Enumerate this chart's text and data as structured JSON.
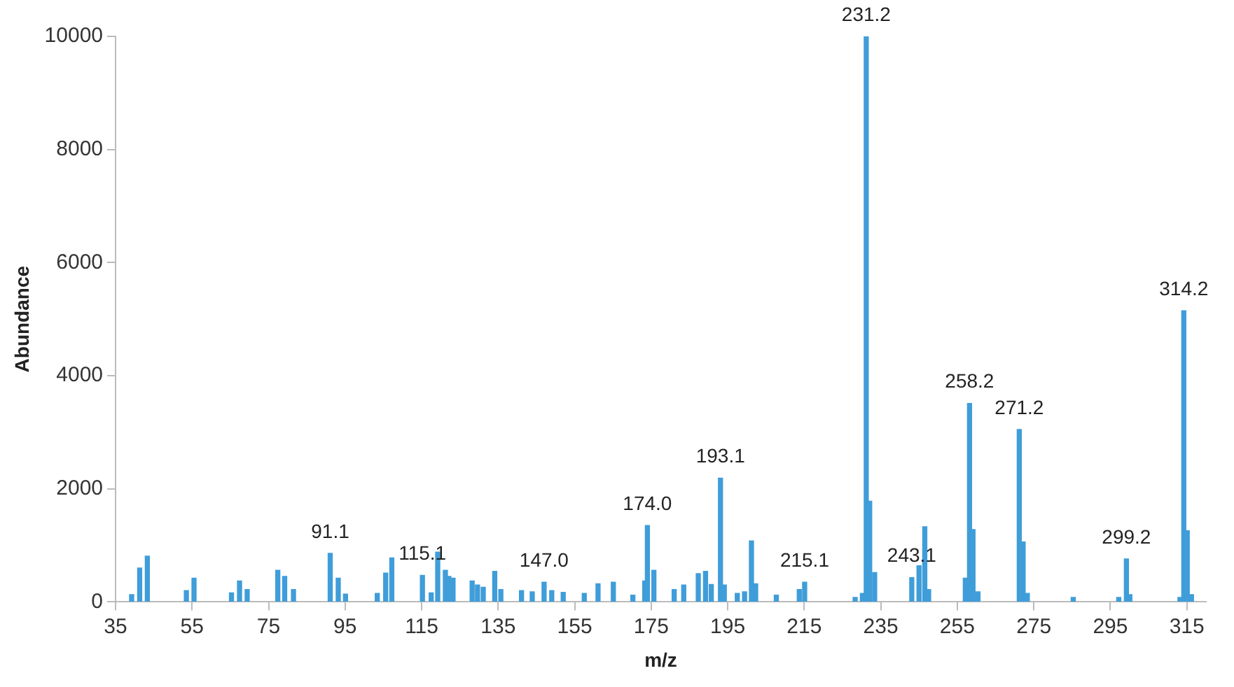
{
  "chart_data": {
    "type": "bar",
    "xlabel": "m/z",
    "ylabel": "Abundance",
    "color": "#3f9dd9",
    "x": [
      39.2,
      41.3,
      43.3,
      53.5,
      55.5,
      65.3,
      67.4,
      69.4,
      77.4,
      79.2,
      81.5,
      91.1,
      93.2,
      95.1,
      103.4,
      105.6,
      107.2,
      115.2,
      117.5,
      119.2,
      121.2,
      122.1,
      123.2,
      128.2,
      129.6,
      131.1,
      134.1,
      135.7,
      141.1,
      143.9,
      147.0,
      149.0,
      152.0,
      157.5,
      161.1,
      165.1,
      170.2,
      173.3,
      174.0,
      175.7,
      181.0,
      183.5,
      187.3,
      189.2,
      190.7,
      193.1,
      194.1,
      197.5,
      199.4,
      201.2,
      202.3,
      207.7,
      213.7,
      215.1,
      228.3,
      230.2,
      231.2,
      232.1,
      233.4,
      243.1,
      245.0,
      246.5,
      247.5,
      257.1,
      258.2,
      259.1,
      260.4,
      271.2,
      272.2,
      273.3,
      285.3,
      297.2,
      299.2,
      300.1,
      313.2,
      314.2,
      315.1,
      316.2
    ],
    "values": [
      130,
      600,
      810,
      200,
      420,
      160,
      370,
      220,
      560,
      450,
      220,
      860,
      420,
      140,
      150,
      510,
      780,
      470,
      160,
      880,
      560,
      450,
      420,
      370,
      300,
      260,
      540,
      220,
      200,
      180,
      350,
      200,
      170,
      150,
      320,
      350,
      120,
      370,
      1350,
      560,
      220,
      300,
      500,
      540,
      310,
      2190,
      300,
      150,
      180,
      1080,
      320,
      120,
      220,
      350,
      80,
      150,
      10000,
      1780,
      520,
      430,
      640,
      1330,
      220,
      420,
      3510,
      1280,
      180,
      3050,
      1060,
      150,
      80,
      80,
      760,
      130,
      80,
      5150,
      1260,
      130
    ],
    "xlim": [
      35,
      320
    ],
    "xticks": [
      35,
      55,
      75,
      95,
      115,
      135,
      155,
      175,
      195,
      215,
      235,
      255,
      275,
      295,
      315
    ],
    "ylim": [
      0,
      10000
    ],
    "yticks": [
      0,
      2000,
      4000,
      6000,
      8000,
      10000
    ],
    "grid": false,
    "legend": false,
    "annotations": [
      {
        "text": "91.1",
        "x": 91.1,
        "y": 860
      },
      {
        "text": "115.1",
        "x": 115.2,
        "y": 470
      },
      {
        "text": "147.0",
        "x": 147.0,
        "y": 350
      },
      {
        "text": "174.0",
        "x": 174.0,
        "y": 1350
      },
      {
        "text": "193.1",
        "x": 193.1,
        "y": 2190
      },
      {
        "text": "215.1",
        "x": 215.1,
        "y": 350
      },
      {
        "text": "231.2",
        "x": 231.2,
        "y": 10000
      },
      {
        "text": "243.1",
        "x": 243.1,
        "y": 430
      },
      {
        "text": "258.2",
        "x": 258.2,
        "y": 3510
      },
      {
        "text": "271.2",
        "x": 271.2,
        "y": 3050
      },
      {
        "text": "299.2",
        "x": 299.2,
        "y": 760
      },
      {
        "text": "314.2",
        "x": 314.2,
        "y": 5150
      }
    ]
  }
}
